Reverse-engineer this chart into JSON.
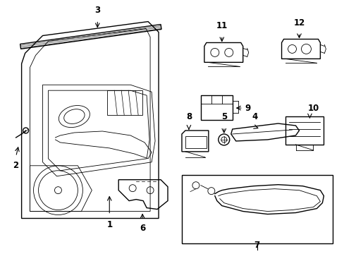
{
  "background_color": "#ffffff",
  "line_color": "#000000",
  "fig_width": 4.89,
  "fig_height": 3.6,
  "dpi": 100
}
